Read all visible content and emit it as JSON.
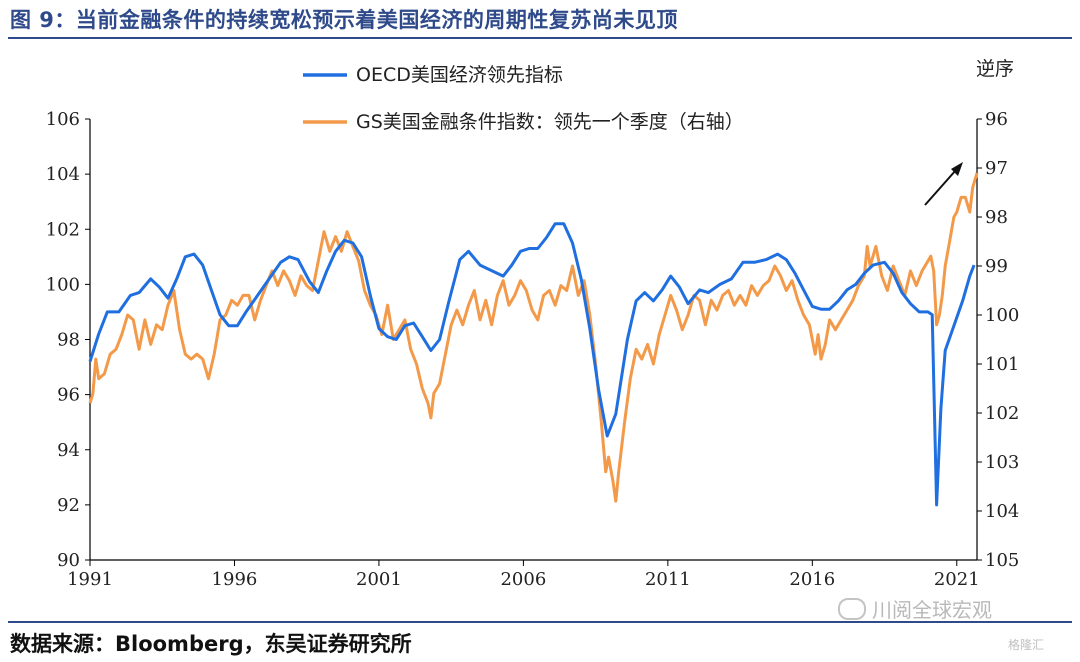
{
  "header": {
    "title": "图 9：当前金融条件的持续宽松预示着美国经济的周期性复苏尚未见顶"
  },
  "footer": {
    "source": "数据来源：Bloomberg，东吴证券研究所"
  },
  "watermark": {
    "text": "川阅全球宏观",
    "badge": "格隆汇"
  },
  "colors": {
    "series1": "#1f6fe0",
    "series2": "#f39a4a",
    "rule": "#2f4a8a",
    "axis": "#000000"
  },
  "chart_data": {
    "type": "line",
    "title": "",
    "xlabel": "",
    "ylabel": "",
    "y2label": "逆序",
    "xlim": [
      1991,
      2021.7
    ],
    "ylim": [
      90,
      106
    ],
    "y2lim": [
      96,
      105
    ],
    "y2_inverted": true,
    "x_ticks": [
      "1991",
      "1996",
      "2001",
      "2006",
      "2011",
      "2016",
      "2021"
    ],
    "y_ticks": [
      "90",
      "92",
      "94",
      "96",
      "98",
      "100",
      "102",
      "104",
      "106"
    ],
    "y2_ticks": [
      "96",
      "97",
      "98",
      "99",
      "100",
      "101",
      "102",
      "103",
      "104",
      "105"
    ],
    "legend": {
      "placement": "top"
    },
    "series": [
      {
        "name": "OECD美国经济领先指标",
        "axis": "left",
        "points": [
          [
            1991.0,
            97.2
          ],
          [
            1991.3,
            98.2
          ],
          [
            1991.6,
            99.0
          ],
          [
            1992.0,
            99.0
          ],
          [
            1992.4,
            99.6
          ],
          [
            1992.7,
            99.7
          ],
          [
            1993.1,
            100.2
          ],
          [
            1993.4,
            99.9
          ],
          [
            1993.7,
            99.5
          ],
          [
            1994.0,
            100.2
          ],
          [
            1994.3,
            101.0
          ],
          [
            1994.6,
            101.1
          ],
          [
            1994.9,
            100.7
          ],
          [
            1995.2,
            99.8
          ],
          [
            1995.5,
            98.9
          ],
          [
            1995.8,
            98.5
          ],
          [
            1996.1,
            98.5
          ],
          [
            1996.4,
            99.0
          ],
          [
            1996.8,
            99.6
          ],
          [
            1997.2,
            100.2
          ],
          [
            1997.6,
            100.8
          ],
          [
            1997.9,
            101.0
          ],
          [
            1998.2,
            100.9
          ],
          [
            1998.6,
            100.1
          ],
          [
            1998.9,
            99.7
          ],
          [
            1999.2,
            100.5
          ],
          [
            1999.5,
            101.2
          ],
          [
            1999.8,
            101.6
          ],
          [
            2000.1,
            101.5
          ],
          [
            2000.4,
            101.0
          ],
          [
            2000.7,
            99.6
          ],
          [
            2001.0,
            98.4
          ],
          [
            2001.3,
            98.1
          ],
          [
            2001.6,
            98.0
          ],
          [
            2001.9,
            98.5
          ],
          [
            2002.2,
            98.6
          ],
          [
            2002.5,
            98.1
          ],
          [
            2002.8,
            97.6
          ],
          [
            2003.1,
            98.0
          ],
          [
            2003.4,
            99.3
          ],
          [
            2003.8,
            100.9
          ],
          [
            2004.1,
            101.2
          ],
          [
            2004.5,
            100.7
          ],
          [
            2004.9,
            100.5
          ],
          [
            2005.3,
            100.3
          ],
          [
            2005.6,
            100.7
          ],
          [
            2005.9,
            101.2
          ],
          [
            2006.2,
            101.3
          ],
          [
            2006.5,
            101.3
          ],
          [
            2006.8,
            101.7
          ],
          [
            2007.1,
            102.2
          ],
          [
            2007.4,
            102.2
          ],
          [
            2007.7,
            101.5
          ],
          [
            2008.0,
            100.2
          ],
          [
            2008.3,
            98.4
          ],
          [
            2008.6,
            96.2
          ],
          [
            2008.9,
            94.5
          ],
          [
            2009.2,
            95.3
          ],
          [
            2009.6,
            98.0
          ],
          [
            2009.9,
            99.4
          ],
          [
            2010.2,
            99.7
          ],
          [
            2010.5,
            99.4
          ],
          [
            2010.8,
            99.8
          ],
          [
            2011.1,
            100.3
          ],
          [
            2011.4,
            99.9
          ],
          [
            2011.7,
            99.3
          ],
          [
            2012.1,
            99.8
          ],
          [
            2012.4,
            99.7
          ],
          [
            2012.8,
            100.0
          ],
          [
            2013.2,
            100.2
          ],
          [
            2013.6,
            100.8
          ],
          [
            2014.0,
            100.8
          ],
          [
            2014.4,
            100.9
          ],
          [
            2014.8,
            101.1
          ],
          [
            2015.1,
            100.9
          ],
          [
            2015.4,
            100.4
          ],
          [
            2015.7,
            99.8
          ],
          [
            2016.0,
            99.2
          ],
          [
            2016.3,
            99.1
          ],
          [
            2016.6,
            99.1
          ],
          [
            2016.9,
            99.4
          ],
          [
            2017.2,
            99.8
          ],
          [
            2017.5,
            100.0
          ],
          [
            2017.8,
            100.4
          ],
          [
            2018.1,
            100.7
          ],
          [
            2018.5,
            100.8
          ],
          [
            2018.8,
            100.4
          ],
          [
            2019.1,
            99.7
          ],
          [
            2019.4,
            99.3
          ],
          [
            2019.7,
            99.0
          ],
          [
            2020.0,
            99.0
          ],
          [
            2020.15,
            98.9
          ],
          [
            2020.3,
            92.0
          ],
          [
            2020.45,
            95.5
          ],
          [
            2020.6,
            97.6
          ],
          [
            2020.9,
            98.5
          ],
          [
            2021.2,
            99.4
          ],
          [
            2021.45,
            100.3
          ],
          [
            2021.6,
            100.7
          ]
        ]
      },
      {
        "name": "GS美国金融条件指数：领先一个季度（右轴）",
        "axis": "right",
        "points": [
          [
            1991.0,
            101.8
          ],
          [
            1991.1,
            101.6
          ],
          [
            1991.2,
            100.9
          ],
          [
            1991.3,
            101.3
          ],
          [
            1991.5,
            101.2
          ],
          [
            1991.7,
            100.8
          ],
          [
            1991.9,
            100.7
          ],
          [
            1992.1,
            100.4
          ],
          [
            1992.3,
            100.0
          ],
          [
            1992.5,
            100.1
          ],
          [
            1992.7,
            100.7
          ],
          [
            1992.9,
            100.1
          ],
          [
            1993.1,
            100.6
          ],
          [
            1993.3,
            100.2
          ],
          [
            1993.5,
            100.3
          ],
          [
            1993.7,
            99.8
          ],
          [
            1993.9,
            99.5
          ],
          [
            1994.1,
            100.3
          ],
          [
            1994.3,
            100.8
          ],
          [
            1994.5,
            100.9
          ],
          [
            1994.7,
            100.8
          ],
          [
            1994.9,
            100.9
          ],
          [
            1995.1,
            101.3
          ],
          [
            1995.3,
            100.8
          ],
          [
            1995.5,
            100.1
          ],
          [
            1995.7,
            100.0
          ],
          [
            1995.9,
            99.7
          ],
          [
            1996.1,
            99.8
          ],
          [
            1996.3,
            99.6
          ],
          [
            1996.5,
            99.6
          ],
          [
            1996.7,
            100.1
          ],
          [
            1996.9,
            99.7
          ],
          [
            1997.1,
            99.4
          ],
          [
            1997.3,
            99.1
          ],
          [
            1997.5,
            99.4
          ],
          [
            1997.7,
            99.1
          ],
          [
            1997.9,
            99.3
          ],
          [
            1998.1,
            99.6
          ],
          [
            1998.3,
            99.2
          ],
          [
            1998.5,
            99.4
          ],
          [
            1998.7,
            99.5
          ],
          [
            1998.9,
            98.9
          ],
          [
            1999.1,
            98.3
          ],
          [
            1999.3,
            98.7
          ],
          [
            1999.5,
            98.4
          ],
          [
            1999.7,
            98.7
          ],
          [
            1999.9,
            98.3
          ],
          [
            2000.1,
            98.6
          ],
          [
            2000.3,
            98.9
          ],
          [
            2000.5,
            99.5
          ],
          [
            2000.7,
            99.8
          ],
          [
            2000.9,
            100.0
          ],
          [
            2001.1,
            100.4
          ],
          [
            2001.3,
            99.8
          ],
          [
            2001.5,
            100.5
          ],
          [
            2001.7,
            100.3
          ],
          [
            2001.9,
            100.1
          ],
          [
            2002.1,
            100.7
          ],
          [
            2002.3,
            101.0
          ],
          [
            2002.5,
            101.5
          ],
          [
            2002.7,
            101.8
          ],
          [
            2002.8,
            102.1
          ],
          [
            2002.9,
            101.6
          ],
          [
            2003.1,
            101.4
          ],
          [
            2003.3,
            100.8
          ],
          [
            2003.5,
            100.2
          ],
          [
            2003.7,
            99.9
          ],
          [
            2003.9,
            100.2
          ],
          [
            2004.1,
            99.8
          ],
          [
            2004.3,
            99.5
          ],
          [
            2004.5,
            100.1
          ],
          [
            2004.7,
            99.7
          ],
          [
            2004.9,
            100.2
          ],
          [
            2005.1,
            99.6
          ],
          [
            2005.3,
            99.3
          ],
          [
            2005.5,
            99.8
          ],
          [
            2005.7,
            99.6
          ],
          [
            2005.9,
            99.3
          ],
          [
            2006.1,
            99.5
          ],
          [
            2006.3,
            99.9
          ],
          [
            2006.5,
            100.1
          ],
          [
            2006.7,
            99.6
          ],
          [
            2006.9,
            99.5
          ],
          [
            2007.1,
            99.8
          ],
          [
            2007.3,
            99.4
          ],
          [
            2007.5,
            99.5
          ],
          [
            2007.7,
            99.0
          ],
          [
            2007.9,
            99.6
          ],
          [
            2008.1,
            99.3
          ],
          [
            2008.3,
            100.0
          ],
          [
            2008.5,
            101.0
          ],
          [
            2008.7,
            102.2
          ],
          [
            2008.85,
            103.2
          ],
          [
            2008.95,
            102.9
          ],
          [
            2009.1,
            103.4
          ],
          [
            2009.2,
            103.8
          ],
          [
            2009.3,
            103.2
          ],
          [
            2009.5,
            102.2
          ],
          [
            2009.7,
            101.3
          ],
          [
            2009.9,
            100.7
          ],
          [
            2010.1,
            100.9
          ],
          [
            2010.3,
            100.6
          ],
          [
            2010.5,
            101.0
          ],
          [
            2010.7,
            100.4
          ],
          [
            2010.9,
            100.0
          ],
          [
            2011.1,
            99.6
          ],
          [
            2011.3,
            99.9
          ],
          [
            2011.5,
            100.3
          ],
          [
            2011.7,
            100.0
          ],
          [
            2011.9,
            99.6
          ],
          [
            2012.1,
            99.7
          ],
          [
            2012.3,
            100.2
          ],
          [
            2012.5,
            99.7
          ],
          [
            2012.7,
            99.9
          ],
          [
            2012.9,
            99.6
          ],
          [
            2013.1,
            99.5
          ],
          [
            2013.3,
            99.8
          ],
          [
            2013.5,
            99.6
          ],
          [
            2013.7,
            99.8
          ],
          [
            2013.9,
            99.4
          ],
          [
            2014.1,
            99.6
          ],
          [
            2014.3,
            99.4
          ],
          [
            2014.5,
            99.3
          ],
          [
            2014.7,
            99.0
          ],
          [
            2014.9,
            99.2
          ],
          [
            2015.1,
            99.5
          ],
          [
            2015.3,
            99.3
          ],
          [
            2015.5,
            99.7
          ],
          [
            2015.7,
            100.0
          ],
          [
            2015.9,
            100.2
          ],
          [
            2016.0,
            100.5
          ],
          [
            2016.1,
            100.8
          ],
          [
            2016.2,
            100.4
          ],
          [
            2016.3,
            100.9
          ],
          [
            2016.45,
            100.6
          ],
          [
            2016.6,
            100.1
          ],
          [
            2016.8,
            100.3
          ],
          [
            2017.0,
            100.1
          ],
          [
            2017.2,
            99.9
          ],
          [
            2017.4,
            99.7
          ],
          [
            2017.6,
            99.4
          ],
          [
            2017.8,
            99.2
          ],
          [
            2017.9,
            98.6
          ],
          [
            2018.0,
            99.0
          ],
          [
            2018.2,
            98.6
          ],
          [
            2018.4,
            99.2
          ],
          [
            2018.6,
            99.5
          ],
          [
            2018.8,
            99.0
          ],
          [
            2019.0,
            99.3
          ],
          [
            2019.2,
            99.6
          ],
          [
            2019.4,
            99.1
          ],
          [
            2019.6,
            99.4
          ],
          [
            2019.8,
            99.1
          ],
          [
            2020.0,
            98.9
          ],
          [
            2020.1,
            98.8
          ],
          [
            2020.2,
            99.1
          ],
          [
            2020.3,
            100.2
          ],
          [
            2020.4,
            100.0
          ],
          [
            2020.5,
            99.6
          ],
          [
            2020.6,
            99.0
          ],
          [
            2020.75,
            98.5
          ],
          [
            2020.9,
            98.0
          ],
          [
            2021.0,
            97.9
          ],
          [
            2021.15,
            97.6
          ],
          [
            2021.3,
            97.6
          ],
          [
            2021.45,
            97.9
          ],
          [
            2021.55,
            97.4
          ],
          [
            2021.7,
            97.1
          ]
        ]
      }
    ]
  }
}
